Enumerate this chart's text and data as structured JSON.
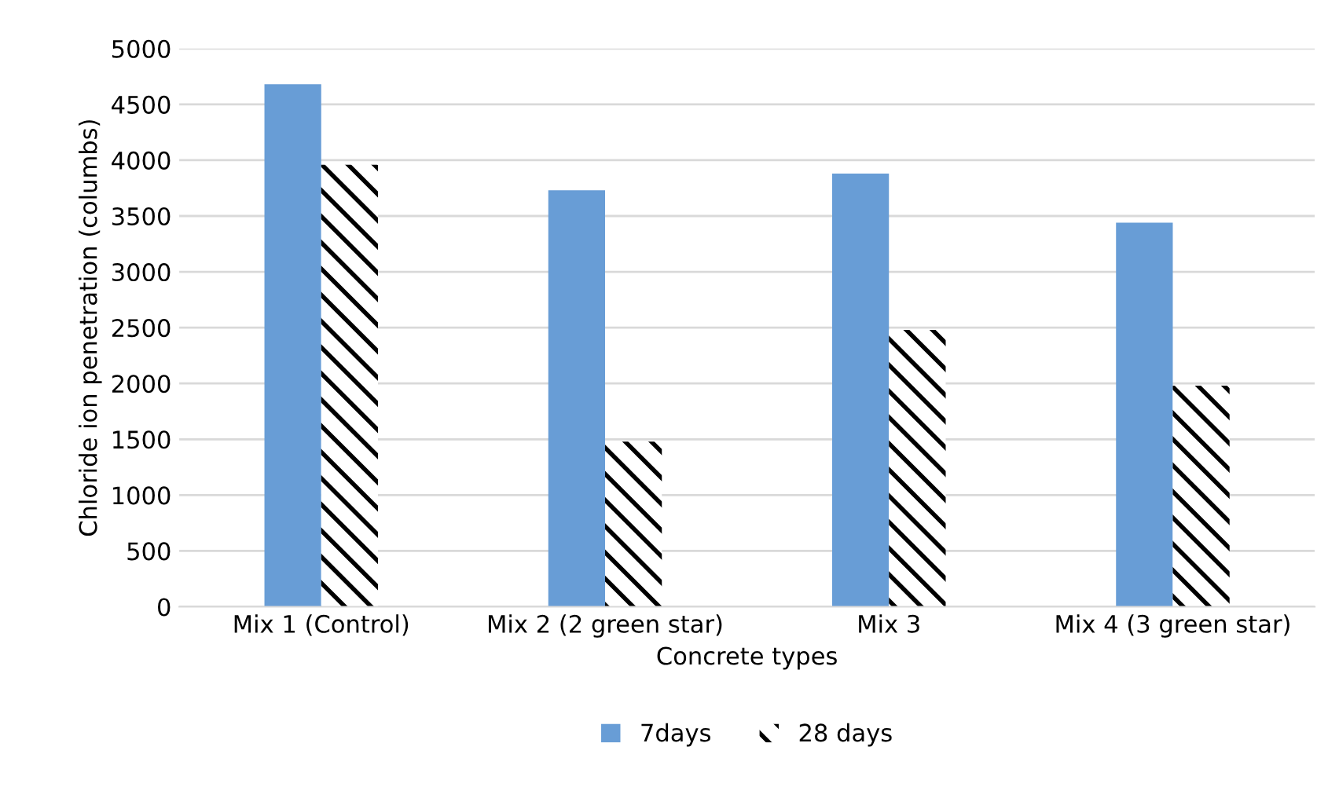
{
  "chart_data": {
    "type": "bar",
    "xlabel": "Concrete types",
    "ylabel": "Chloride ion penetration (columbs)",
    "categories": [
      "Mix 1 (Control)",
      "Mix 2 (2 green star)",
      "Mix 3",
      "Mix 4 (3 green star)"
    ],
    "series": [
      {
        "name": "7days",
        "color": "#689dd6",
        "values": [
          4680,
          3730,
          3880,
          3440
        ]
      },
      {
        "name": "28 days",
        "color": "#000000",
        "values": [
          3960,
          1480,
          2480,
          1980
        ]
      }
    ],
    "ylim": [
      0,
      5000
    ],
    "yticks": [
      0,
      500,
      1000,
      1500,
      2000,
      2500,
      3000,
      3500,
      4000,
      4500,
      5000
    ],
    "grid": "y",
    "legend": "bottom"
  }
}
